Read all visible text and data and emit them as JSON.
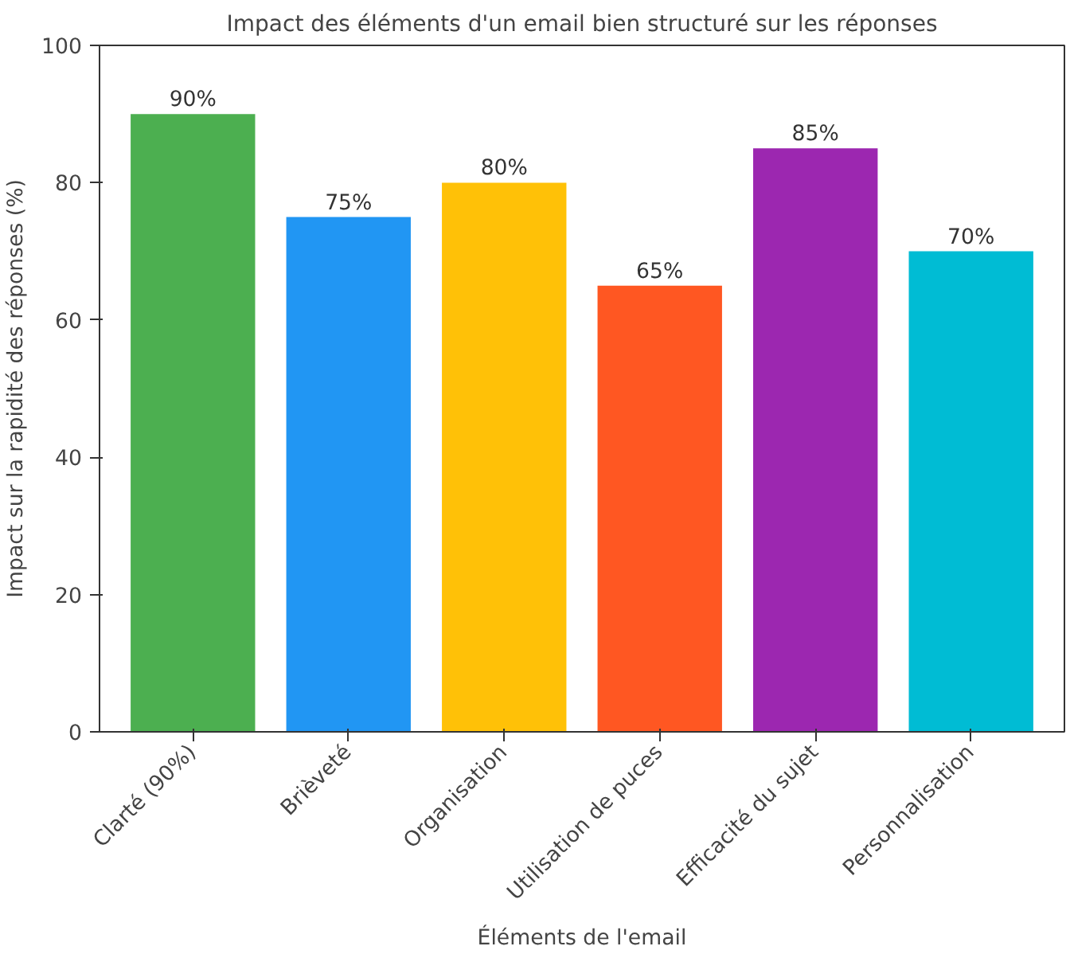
{
  "chart_data": {
    "type": "bar",
    "title": "Impact des éléments d'un email bien structuré sur les réponses",
    "xlabel": "Éléments de l'email",
    "ylabel": "Impact sur la rapidité des réponses (%)",
    "categories": [
      "Clarté (90%)",
      "Brièveté",
      "Organisation",
      "Utilisation de puces",
      "Efficacité du sujet",
      "Personnalisation"
    ],
    "values": [
      90,
      75,
      80,
      65,
      85,
      70
    ],
    "colors": [
      "#4caf50",
      "#2196f3",
      "#ffc107",
      "#ff5722",
      "#9c27b0",
      "#00bcd4"
    ],
    "value_labels": [
      "90%",
      "75%",
      "80%",
      "65%",
      "85%",
      "70%"
    ],
    "ylim": [
      0,
      100
    ],
    "yticks": [
      0,
      20,
      40,
      60,
      80,
      100
    ],
    "grid": false
  }
}
